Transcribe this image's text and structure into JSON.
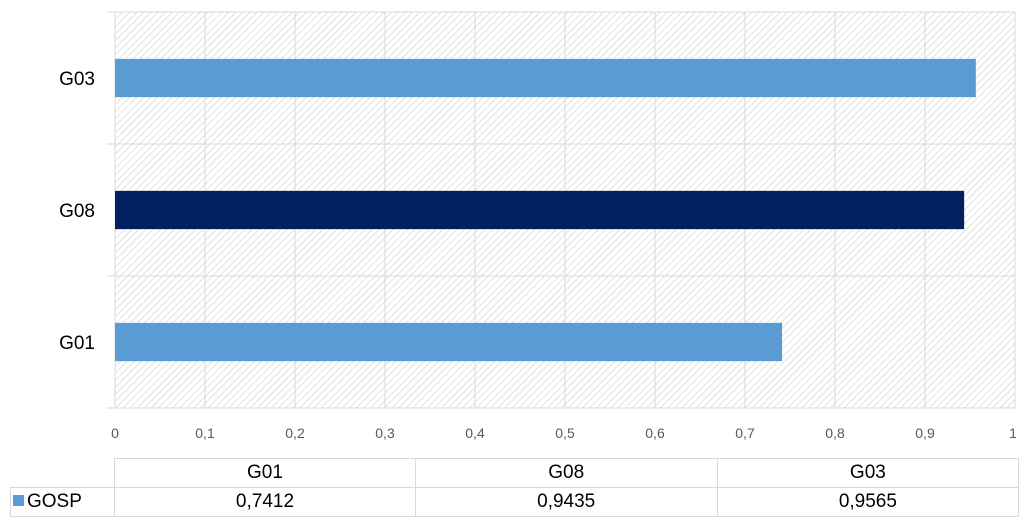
{
  "chart_data": {
    "type": "bar",
    "orientation": "horizontal",
    "categories": [
      "G01",
      "G08",
      "G03"
    ],
    "series": [
      {
        "name": "GOSP",
        "values": [
          0.7412,
          0.9435,
          0.9565
        ],
        "color": "#5b9bd5"
      }
    ],
    "highlight": {
      "category": "G08",
      "color": "#002060"
    },
    "xlim": [
      0,
      1
    ],
    "x_ticks": [
      "0",
      "0,1",
      "0,2",
      "0,3",
      "0,4",
      "0,5",
      "0,6",
      "0,7",
      "0,8",
      "0,9",
      "1"
    ],
    "grid": true,
    "plot_background": "hatched",
    "data_table": {
      "headers": [
        "G01",
        "G08",
        "G03"
      ],
      "series_label": "GOSP",
      "values": [
        "0,7412",
        "0,9435",
        "0,9565"
      ]
    }
  }
}
